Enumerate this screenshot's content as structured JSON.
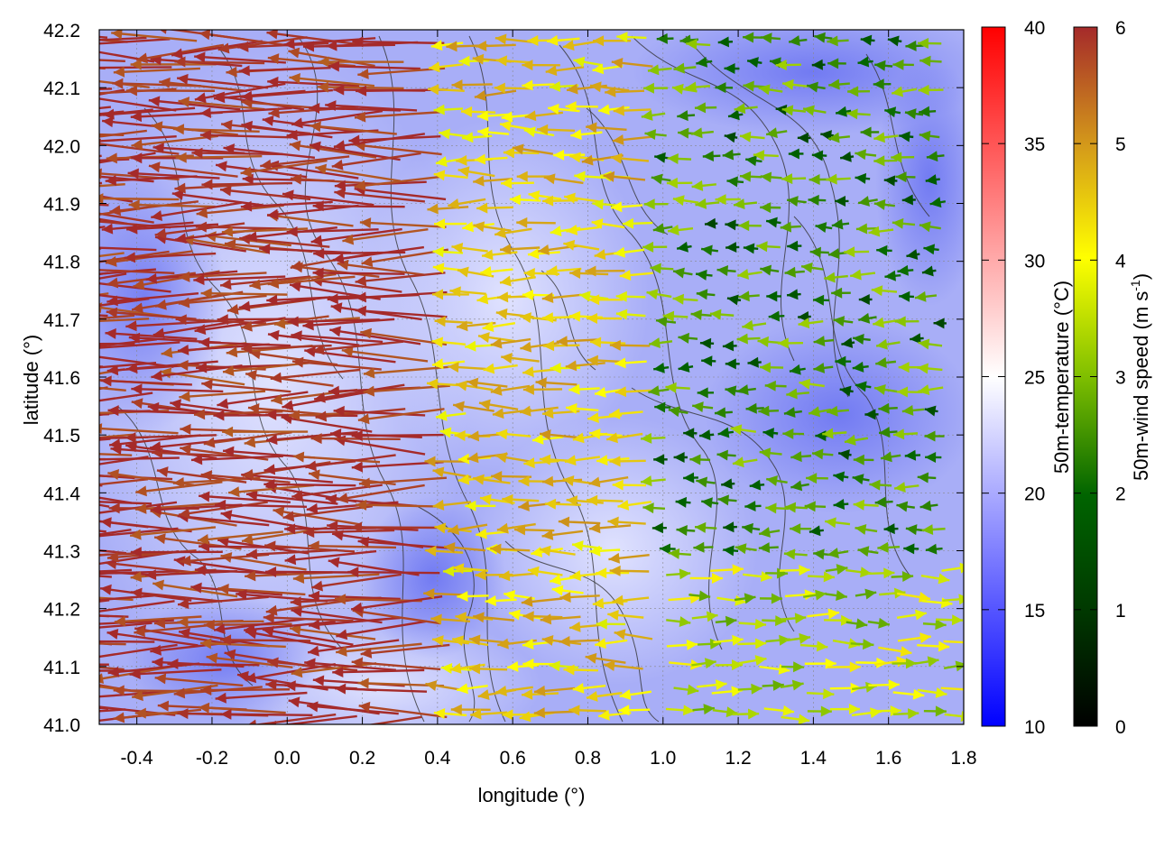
{
  "chart_data": {
    "type": "vector-field",
    "xlabel": "longitude (°)",
    "ylabel": "latitude (°)",
    "xlim": [
      -0.5,
      1.8
    ],
    "ylim": [
      41.0,
      42.2
    ],
    "x_ticks": [
      "-0.4",
      "-0.2",
      "0.0",
      "0.2",
      "0.4",
      "0.6",
      "0.8",
      "1.0",
      "1.2",
      "1.4",
      "1.6",
      "1.8"
    ],
    "x_tick_values": [
      -0.4,
      -0.2,
      0.0,
      0.2,
      0.4,
      0.6,
      0.8,
      1.0,
      1.2,
      1.4,
      1.6,
      1.8
    ],
    "y_ticks": [
      "41.0",
      "41.1",
      "41.2",
      "41.3",
      "41.4",
      "41.5",
      "41.6",
      "41.7",
      "41.8",
      "41.9",
      "42.0",
      "42.1",
      "42.2"
    ],
    "y_tick_values": [
      41.0,
      41.1,
      41.2,
      41.3,
      41.4,
      41.5,
      41.6,
      41.7,
      41.8,
      41.9,
      42.0,
      42.1,
      42.2
    ],
    "grid": true,
    "background_field": "50m-temperature",
    "contours": "topography contours (black lines)",
    "temperature_colorbar": {
      "label": "50m-temperature (°C)",
      "range": [
        10,
        40
      ],
      "ticks": [
        "10",
        "15",
        "20",
        "25",
        "30",
        "35",
        "40"
      ],
      "tick_values": [
        10,
        15,
        20,
        25,
        30,
        35,
        40
      ],
      "colors": [
        "#0000ff",
        "#ffffff",
        "#ff0000"
      ]
    },
    "wind_colorbar": {
      "label_main": "50m-wind speed (m s",
      "label_exp": "-1",
      "label_end": ")",
      "range": [
        0,
        6
      ],
      "ticks": [
        "0",
        "1",
        "2",
        "3",
        "4",
        "5",
        "6"
      ],
      "tick_values": [
        0,
        1,
        2,
        3,
        4,
        5,
        6
      ],
      "colors": [
        "#000000",
        "#006400",
        "#7fbf00",
        "#ffff00",
        "#d4a017",
        "#b86b1e",
        "#a52a2a"
      ]
    },
    "wind_regions": [
      {
        "name": "west",
        "x_range": [
          -0.5,
          0.45
        ],
        "y_range": [
          41.0,
          42.2
        ],
        "speed": 6,
        "direction": "from east"
      },
      {
        "name": "center",
        "x_range": [
          0.45,
          1.0
        ],
        "y_range": [
          41.0,
          42.2
        ],
        "speed": 3.5,
        "direction": "from east"
      },
      {
        "name": "northeast",
        "x_range": [
          1.0,
          1.8
        ],
        "y_range": [
          41.3,
          42.2
        ],
        "speed": 1.5,
        "direction": "from east"
      },
      {
        "name": "southeast",
        "x_range": [
          0.9,
          1.8
        ],
        "y_range": [
          41.0,
          41.3
        ],
        "speed": 2.5,
        "direction": "from west"
      }
    ]
  }
}
